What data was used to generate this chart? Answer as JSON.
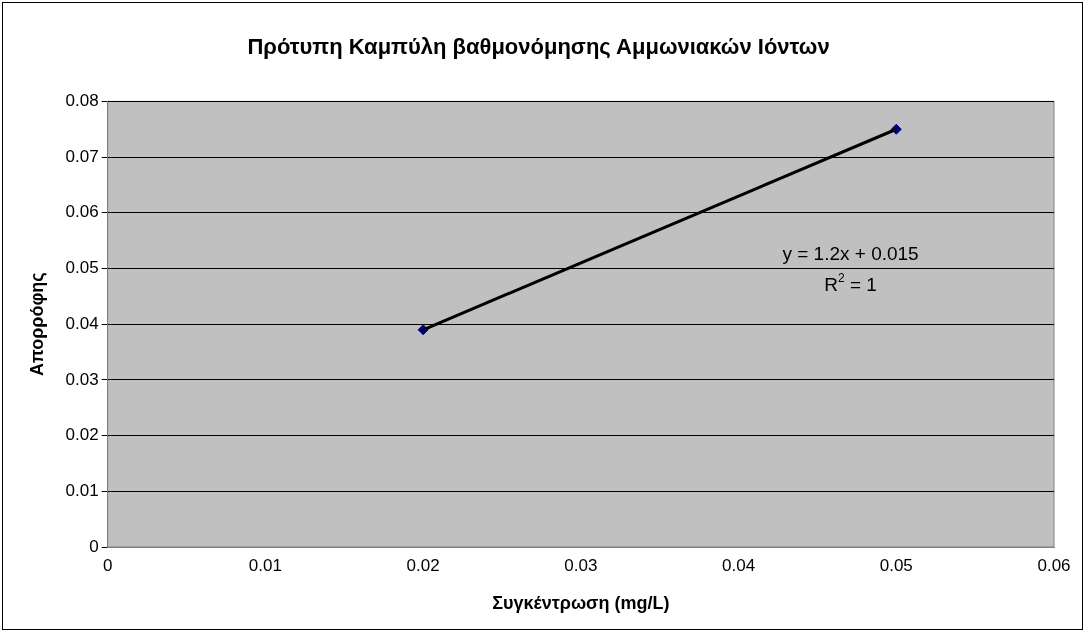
{
  "chart_data": {
    "type": "scatter",
    "title": "Πρότυπη Καμπύλη βαθμονόμησης Αμμωνιακών Ιόντων",
    "xlabel": "Συγκέντρωση (mg/L)",
    "ylabel": "Απορρόφης",
    "x": [
      0.02,
      0.05
    ],
    "series": [
      {
        "color": "#000080",
        "values": [
          0.039,
          0.075
        ],
        "marker": "diamond"
      },
      {
        "type": "line",
        "color": "#000000",
        "x": [
          0.02,
          0.05
        ],
        "values": [
          0.039,
          0.075
        ],
        "marker": "none",
        "line_style": "solid"
      }
    ],
    "xlim": [
      0,
      0.06
    ],
    "xticks": [
      0,
      0.01,
      0.02,
      0.03,
      0.04,
      0.05,
      0.06
    ],
    "ylim": [
      0,
      0.08
    ],
    "yticks": [
      0,
      0.01,
      0.02,
      0.03,
      0.04,
      0.05,
      0.06,
      0.07,
      0.08
    ],
    "grid": "y",
    "legend": false,
    "annotations": [
      "y = 1.2x + 0.015",
      "R$^{2}$ = 1"
    ]
  }
}
